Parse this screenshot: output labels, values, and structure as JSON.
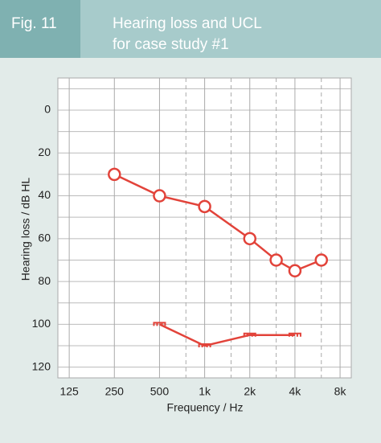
{
  "chart_data": {
    "type": "line",
    "fig_label": "Fig. 11",
    "title": [
      "Hearing loss and UCL",
      "for case study #1"
    ],
    "xlabel": "Frequency / Hz",
    "ylabel": "Hearing loss / dB HL",
    "xscale": "log",
    "xlim": [
      105,
      9500
    ],
    "ylim": [
      -15,
      125
    ],
    "y_inverted": true,
    "xticks": [
      125,
      250,
      500,
      {
        "value": 1000,
        "label": "1k"
      },
      {
        "value": 2000,
        "label": "2k"
      },
      {
        "value": 4000,
        "label": "4k"
      },
      {
        "value": 8000,
        "label": "8k"
      }
    ],
    "x_dashed_grid": [
      750,
      1500,
      3000,
      6000
    ],
    "yticks": [
      0,
      20,
      40,
      60,
      80,
      100,
      120
    ],
    "ygrid": [
      -10,
      0,
      10,
      20,
      30,
      40,
      50,
      60,
      70,
      80,
      90,
      100,
      110,
      120
    ],
    "series": [
      {
        "name": "Hearing loss",
        "color": "#e2433a",
        "marker": "circle",
        "x": [
          250,
          500,
          1000,
          2000,
          3000,
          4000,
          6000
        ],
        "values": [
          30,
          40,
          45,
          60,
          70,
          75,
          70
        ]
      },
      {
        "name": "UCL",
        "color": "#e2433a",
        "marker": "bracket",
        "x": [
          500,
          1000,
          2000,
          4000
        ],
        "values": [
          100,
          110,
          105,
          105
        ]
      }
    ]
  }
}
